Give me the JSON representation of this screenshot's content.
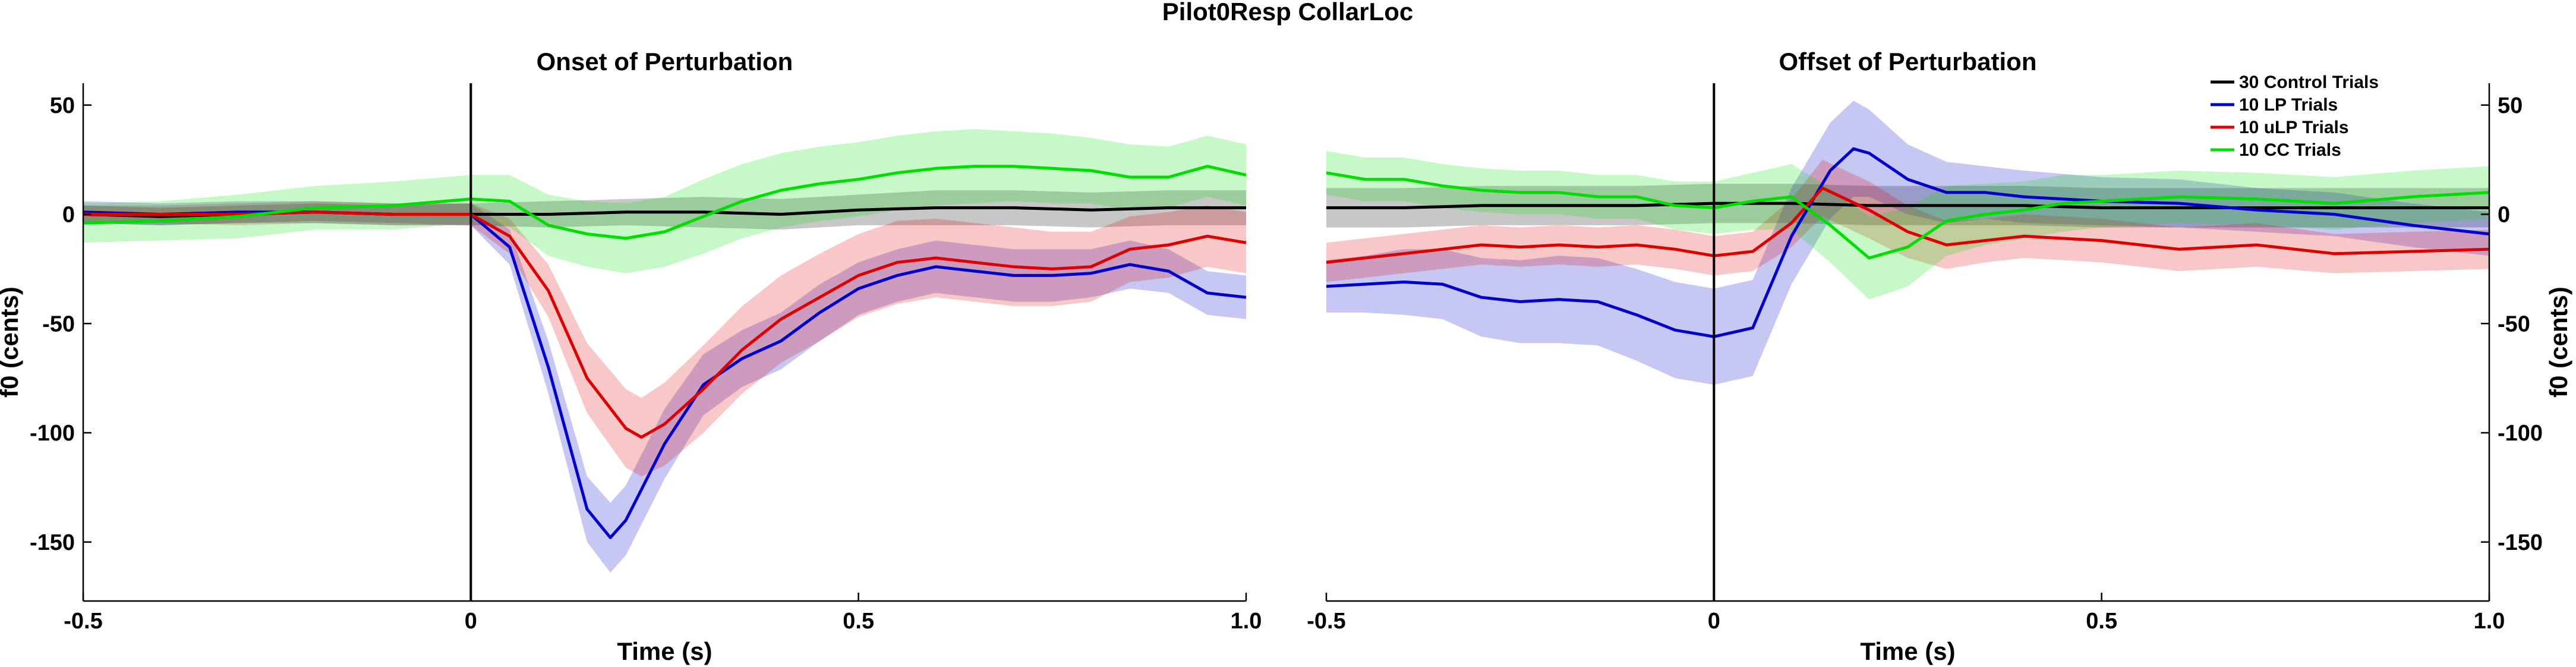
{
  "figure_title": "Pilot0Resp CollarLoc",
  "colors": {
    "control": "#000000",
    "lp": "#0000cc",
    "ulp": "#dd0000",
    "cc": "#00dd00"
  },
  "chart_data": [
    {
      "type": "line",
      "title": "Onset of Perturbation",
      "xlabel": "Time (s)",
      "ylabel": "f0 (cents)",
      "xlim": [
        -0.5,
        1.0
      ],
      "ylim": [
        -177,
        60
      ],
      "xticks": [
        -0.5,
        0,
        0.5,
        1.0
      ],
      "xtick_labels": [
        "-0.5",
        "0",
        "0.5",
        "1.0"
      ],
      "yticks": [
        50,
        0,
        -50,
        -100,
        -150
      ],
      "ytick_labels": [
        "50",
        "0",
        "-50",
        "-100",
        "-150"
      ],
      "y_axis_side": "left",
      "vertical_line_x": 0,
      "grid": false,
      "legend": null,
      "series": [
        {
          "name": "30 Control Trials",
          "color_key": "control",
          "x": [
            -0.5,
            -0.4,
            -0.3,
            -0.2,
            -0.1,
            0,
            0.1,
            0.2,
            0.3,
            0.4,
            0.5,
            0.6,
            0.7,
            0.8,
            0.9,
            1.0
          ],
          "y": [
            0,
            -1,
            0,
            1,
            0,
            0,
            0,
            1,
            1,
            0,
            2,
            3,
            3,
            2,
            3,
            3
          ],
          "band": [
            4,
            4,
            4,
            4,
            4,
            5,
            6,
            6,
            7,
            7,
            7,
            8,
            8,
            8,
            8,
            8
          ]
        },
        {
          "name": "10 LP Trials",
          "color_key": "lp",
          "x": [
            -0.5,
            -0.4,
            -0.3,
            -0.2,
            -0.1,
            0,
            0.05,
            0.1,
            0.15,
            0.18,
            0.2,
            0.25,
            0.3,
            0.35,
            0.4,
            0.45,
            0.5,
            0.55,
            0.6,
            0.65,
            0.7,
            0.75,
            0.8,
            0.85,
            0.9,
            0.95,
            1.0
          ],
          "y": [
            1,
            0,
            1,
            1,
            0,
            0,
            -15,
            -70,
            -135,
            -148,
            -140,
            -105,
            -78,
            -66,
            -58,
            -45,
            -34,
            -28,
            -24,
            -26,
            -28,
            -28,
            -27,
            -23,
            -26,
            -36,
            -38
          ],
          "band": [
            5,
            5,
            5,
            5,
            5,
            5,
            8,
            12,
            15,
            16,
            16,
            16,
            14,
            13,
            13,
            13,
            12,
            12,
            12,
            12,
            12,
            12,
            11,
            11,
            10,
            10,
            10
          ]
        },
        {
          "name": "10 uLP Trials",
          "color_key": "ulp",
          "x": [
            -0.5,
            -0.4,
            -0.3,
            -0.2,
            -0.1,
            0,
            0.05,
            0.1,
            0.15,
            0.2,
            0.22,
            0.25,
            0.3,
            0.35,
            0.4,
            0.45,
            0.5,
            0.55,
            0.6,
            0.65,
            0.7,
            0.75,
            0.8,
            0.85,
            0.9,
            0.95,
            1.0
          ],
          "y": [
            0,
            0,
            0,
            1,
            0,
            0,
            -10,
            -35,
            -75,
            -98,
            -102,
            -96,
            -80,
            -62,
            -48,
            -38,
            -28,
            -22,
            -20,
            -22,
            -24,
            -25,
            -24,
            -16,
            -14,
            -10,
            -13
          ],
          "band": [
            4,
            4,
            5,
            5,
            5,
            5,
            8,
            12,
            16,
            18,
            18,
            19,
            20,
            20,
            20,
            20,
            19,
            19,
            18,
            18,
            18,
            17,
            16,
            15,
            15,
            14,
            14
          ]
        },
        {
          "name": "10 CC Trials",
          "color_key": "cc",
          "x": [
            -0.5,
            -0.4,
            -0.3,
            -0.2,
            -0.1,
            0,
            0.05,
            0.1,
            0.15,
            0.2,
            0.25,
            0.3,
            0.35,
            0.4,
            0.45,
            0.5,
            0.55,
            0.6,
            0.65,
            0.7,
            0.75,
            0.8,
            0.85,
            0.9,
            0.95,
            1.0
          ],
          "y": [
            -4,
            -3,
            -1,
            3,
            4,
            7,
            6,
            -5,
            -9,
            -11,
            -8,
            -1,
            6,
            11,
            14,
            16,
            19,
            21,
            22,
            22,
            21,
            20,
            17,
            17,
            22,
            18
          ],
          "band": [
            9,
            9,
            10,
            10,
            11,
            11,
            12,
            14,
            15,
            16,
            16,
            17,
            17,
            17,
            17,
            17,
            17,
            17,
            17,
            16,
            16,
            15,
            15,
            14,
            14,
            14
          ]
        }
      ]
    },
    {
      "type": "line",
      "title": "Offset of Perturbation",
      "xlabel": "Time (s)",
      "ylabel": "f0 (cents)",
      "xlim": [
        -0.5,
        1.0
      ],
      "ylim": [
        -177,
        60
      ],
      "xticks": [
        -0.5,
        0,
        0.5,
        1.0
      ],
      "xtick_labels": [
        "-0.5",
        "0",
        "0.5",
        "1.0"
      ],
      "yticks": [
        50,
        0,
        -50,
        -100,
        -150
      ],
      "ytick_labels": [
        "50",
        "0",
        "-50",
        "-100",
        "-150"
      ],
      "y_axis_side": "right",
      "vertical_line_x": 0,
      "grid": false,
      "legend": {
        "placement": "top-right",
        "entries": [
          "30 Control Trials",
          "10 LP Trials",
          "10 uLP Trials",
          "10 CC Trials"
        ]
      },
      "series": [
        {
          "name": "30 Control Trials",
          "color_key": "control",
          "x": [
            -0.5,
            -0.4,
            -0.3,
            -0.2,
            -0.1,
            0,
            0.1,
            0.2,
            0.3,
            0.4,
            0.5,
            0.6,
            0.7,
            0.8,
            0.9,
            1.0
          ],
          "y": [
            3,
            3,
            4,
            4,
            4,
            5,
            5,
            4,
            4,
            4,
            3,
            3,
            3,
            3,
            3,
            3
          ],
          "band": [
            9,
            9,
            9,
            9,
            9,
            9,
            9,
            9,
            9,
            9,
            9,
            9,
            9,
            9,
            9,
            9
          ]
        },
        {
          "name": "10 LP Trials",
          "color_key": "lp",
          "x": [
            -0.5,
            -0.45,
            -0.4,
            -0.35,
            -0.3,
            -0.25,
            -0.2,
            -0.15,
            -0.1,
            -0.05,
            0,
            0.05,
            0.1,
            0.15,
            0.18,
            0.2,
            0.25,
            0.3,
            0.35,
            0.4,
            0.5,
            0.6,
            0.7,
            0.8,
            0.9,
            1.0
          ],
          "y": [
            -33,
            -32,
            -31,
            -32,
            -38,
            -40,
            -39,
            -40,
            -46,
            -53,
            -56,
            -52,
            -10,
            20,
            30,
            28,
            16,
            10,
            10,
            8,
            6,
            5,
            2,
            0,
            -5,
            -9
          ],
          "band": [
            12,
            13,
            15,
            16,
            18,
            19,
            20,
            20,
            21,
            22,
            22,
            22,
            22,
            22,
            22,
            20,
            16,
            14,
            12,
            12,
            11,
            11,
            10,
            10,
            10,
            10
          ]
        },
        {
          "name": "10 uLP Trials",
          "color_key": "ulp",
          "x": [
            -0.5,
            -0.45,
            -0.4,
            -0.35,
            -0.3,
            -0.25,
            -0.2,
            -0.15,
            -0.1,
            -0.05,
            0,
            0.05,
            0.1,
            0.14,
            0.2,
            0.25,
            0.3,
            0.35,
            0.4,
            0.5,
            0.6,
            0.7,
            0.8,
            0.9,
            1.0
          ],
          "y": [
            -22,
            -20,
            -18,
            -16,
            -14,
            -15,
            -14,
            -15,
            -14,
            -16,
            -19,
            -17,
            -4,
            12,
            2,
            -8,
            -14,
            -12,
            -10,
            -12,
            -16,
            -14,
            -18,
            -17,
            -16
          ],
          "band": [
            9,
            9,
            9,
            9,
            9,
            9,
            9,
            9,
            9,
            9,
            9,
            9,
            11,
            13,
            13,
            12,
            11,
            10,
            10,
            10,
            10,
            10,
            9,
            9,
            9
          ]
        },
        {
          "name": "10 CC Trials",
          "color_key": "cc",
          "x": [
            -0.5,
            -0.45,
            -0.4,
            -0.35,
            -0.3,
            -0.25,
            -0.2,
            -0.15,
            -0.1,
            -0.05,
            0,
            0.05,
            0.1,
            0.15,
            0.2,
            0.25,
            0.3,
            0.35,
            0.4,
            0.45,
            0.5,
            0.6,
            0.7,
            0.8,
            0.9,
            1.0
          ],
          "y": [
            19,
            16,
            16,
            13,
            11,
            10,
            10,
            8,
            8,
            4,
            3,
            6,
            8,
            -5,
            -20,
            -15,
            -3,
            0,
            2,
            5,
            6,
            8,
            7,
            5,
            8,
            10
          ],
          "band": [
            10,
            10,
            10,
            10,
            10,
            10,
            10,
            10,
            10,
            11,
            12,
            13,
            15,
            17,
            19,
            18,
            16,
            14,
            13,
            13,
            12,
            12,
            12,
            12,
            12,
            12
          ]
        }
      ]
    }
  ]
}
